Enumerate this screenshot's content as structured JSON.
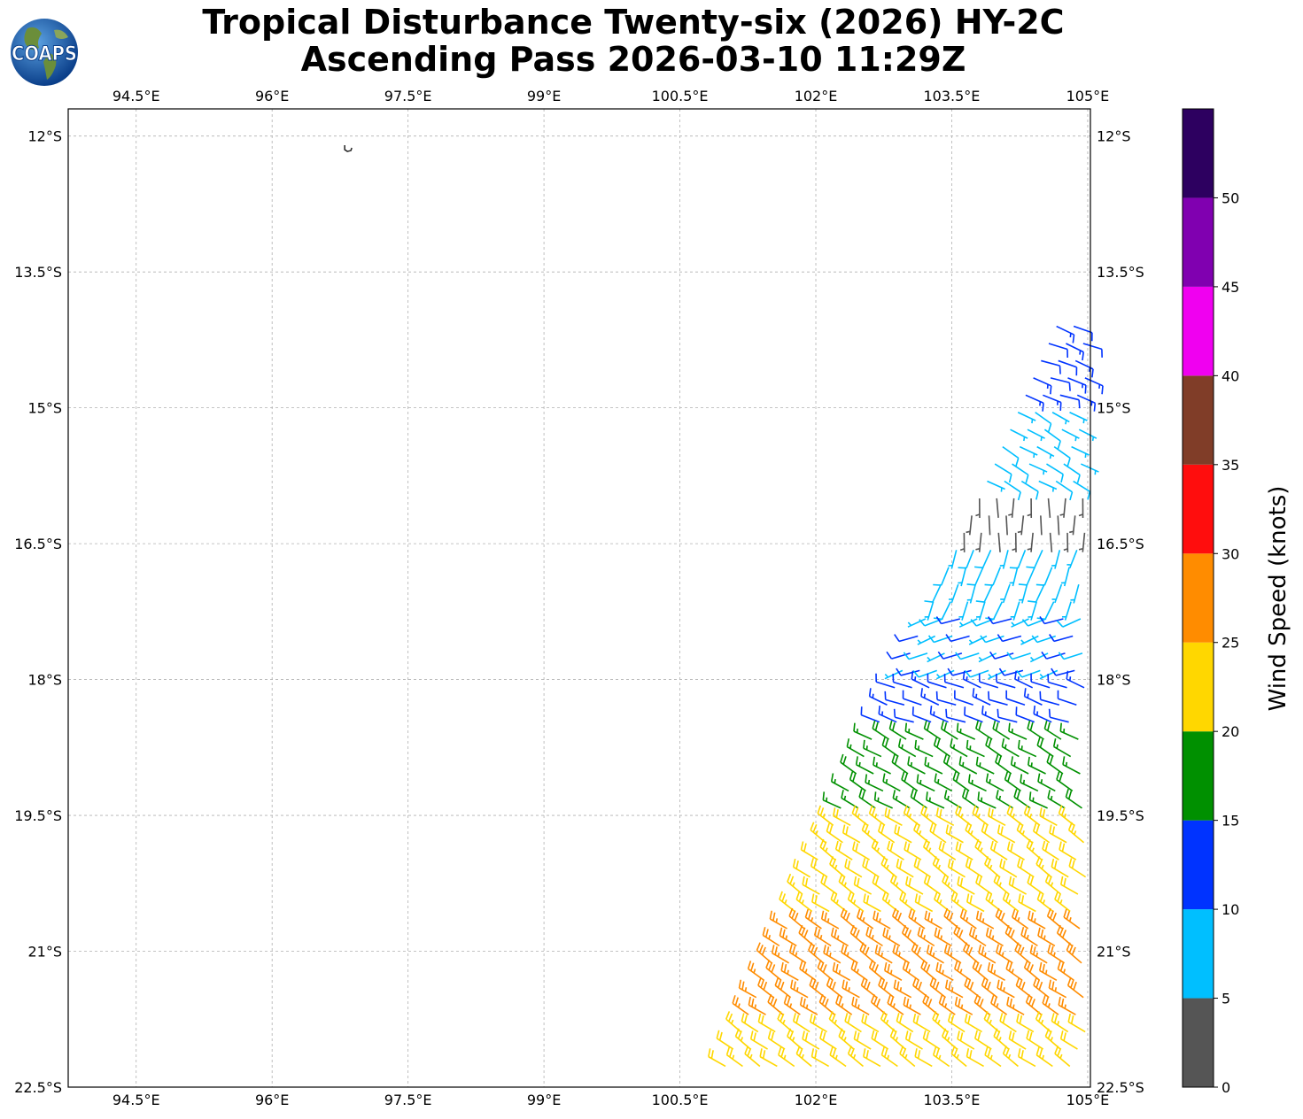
{
  "title": {
    "line1": "Tropical Disturbance Twenty-six (2026) HY-2C",
    "line2": "Ascending Pass 2026-03-10 11:29Z"
  },
  "logo": {
    "text": "COAPS",
    "icon": "globe-logo-icon"
  },
  "map": {
    "projection": "plate-carree",
    "lon_range": [
      93.75,
      105.03
    ],
    "lat_range": [
      -22.5,
      -11.7
    ],
    "lon_ticks": [
      "94.5°E",
      "96°E",
      "97.5°E",
      "99°E",
      "100.5°E",
      "102°E",
      "103.5°E",
      "105°E"
    ],
    "lon_tick_values": [
      94.5,
      96,
      97.5,
      99,
      100.5,
      102,
      103.5,
      105
    ],
    "lat_ticks": [
      "12°S",
      "13.5°S",
      "15°S",
      "16.5°S",
      "18°S",
      "19.5°S",
      "21°S",
      "22.5°S"
    ],
    "lat_tick_values": [
      -12,
      -13.5,
      -15,
      -16.5,
      -18,
      -19.5,
      -21,
      -22.5
    ],
    "gridlines": true,
    "land_outline": {
      "name": "Cocos (Keeling) Islands",
      "lon": 96.85,
      "lat": -12.15
    }
  },
  "colorbar": {
    "label": "Wind Speed (knots)",
    "tick_labels": [
      "0",
      "5",
      "10",
      "15",
      "20",
      "25",
      "30",
      "35",
      "40",
      "45",
      "50"
    ],
    "bins": [
      {
        "min": 0,
        "max": 5,
        "color": "#555555"
      },
      {
        "min": 5,
        "max": 10,
        "color": "#00bfff"
      },
      {
        "min": 10,
        "max": 15,
        "color": "#0033ff"
      },
      {
        "min": 15,
        "max": 20,
        "color": "#009000"
      },
      {
        "min": 20,
        "max": 25,
        "color": "#ffd700"
      },
      {
        "min": 25,
        "max": 30,
        "color": "#ff8c00"
      },
      {
        "min": 30,
        "max": 35,
        "color": "#ff0d0d"
      },
      {
        "min": 35,
        "max": 40,
        "color": "#803d28"
      },
      {
        "min": 40,
        "max": 45,
        "color": "#f000f0"
      },
      {
        "min": 45,
        "max": 50,
        "color": "#8000b0"
      },
      {
        "min": 50,
        "max": 55,
        "color": "#2d0060"
      }
    ]
  },
  "chart_data": {
    "type": "wind_barbs",
    "units": "knots",
    "swath": {
      "description_shown": "HY-2C scatterometer ascending pass winds",
      "regions": [
        {
          "lat": [
            -14.0,
            -15.0
          ],
          "speed_kt": 12,
          "dir_deg": 110
        },
        {
          "lat": [
            -15.0,
            -15.9
          ],
          "speed_kt": 7,
          "dir_deg": 120
        },
        {
          "lat": [
            -15.9,
            -16.5
          ],
          "speed_kt": 3,
          "dir_deg": 180
        },
        {
          "lat": [
            -16.5,
            -17.3
          ],
          "speed_kt": 7,
          "dir_deg": 200
        },
        {
          "lat": [
            -17.3,
            -18.0
          ],
          "speed_kt": 9,
          "dir_deg": 250
        },
        {
          "lat": [
            -18.0,
            -18.5
          ],
          "speed_kt": 12,
          "dir_deg": 290
        },
        {
          "lat": [
            -18.5,
            -19.6
          ],
          "speed_kt": 17,
          "dir_deg": 300
        },
        {
          "lat": [
            -19.6,
            -20.6
          ],
          "speed_kt": 22,
          "dir_deg": 305
        },
        {
          "lat": [
            -20.6,
            -21.8
          ],
          "speed_kt": 27,
          "dir_deg": 305
        },
        {
          "lat": [
            -21.8,
            -22.5
          ],
          "speed_kt": 23,
          "dir_deg": 305
        }
      ]
    }
  }
}
